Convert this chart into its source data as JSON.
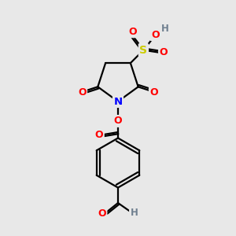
{
  "bg_color": "#e8e8e8",
  "atom_colors": {
    "C": "#000000",
    "N": "#0000ff",
    "O": "#ff0000",
    "S": "#cccc00",
    "H": "#708090"
  },
  "bond_color": "#000000",
  "bond_width": 1.6,
  "dbo": 0.08,
  "figsize": [
    3.0,
    3.0
  ],
  "dpi": 100
}
